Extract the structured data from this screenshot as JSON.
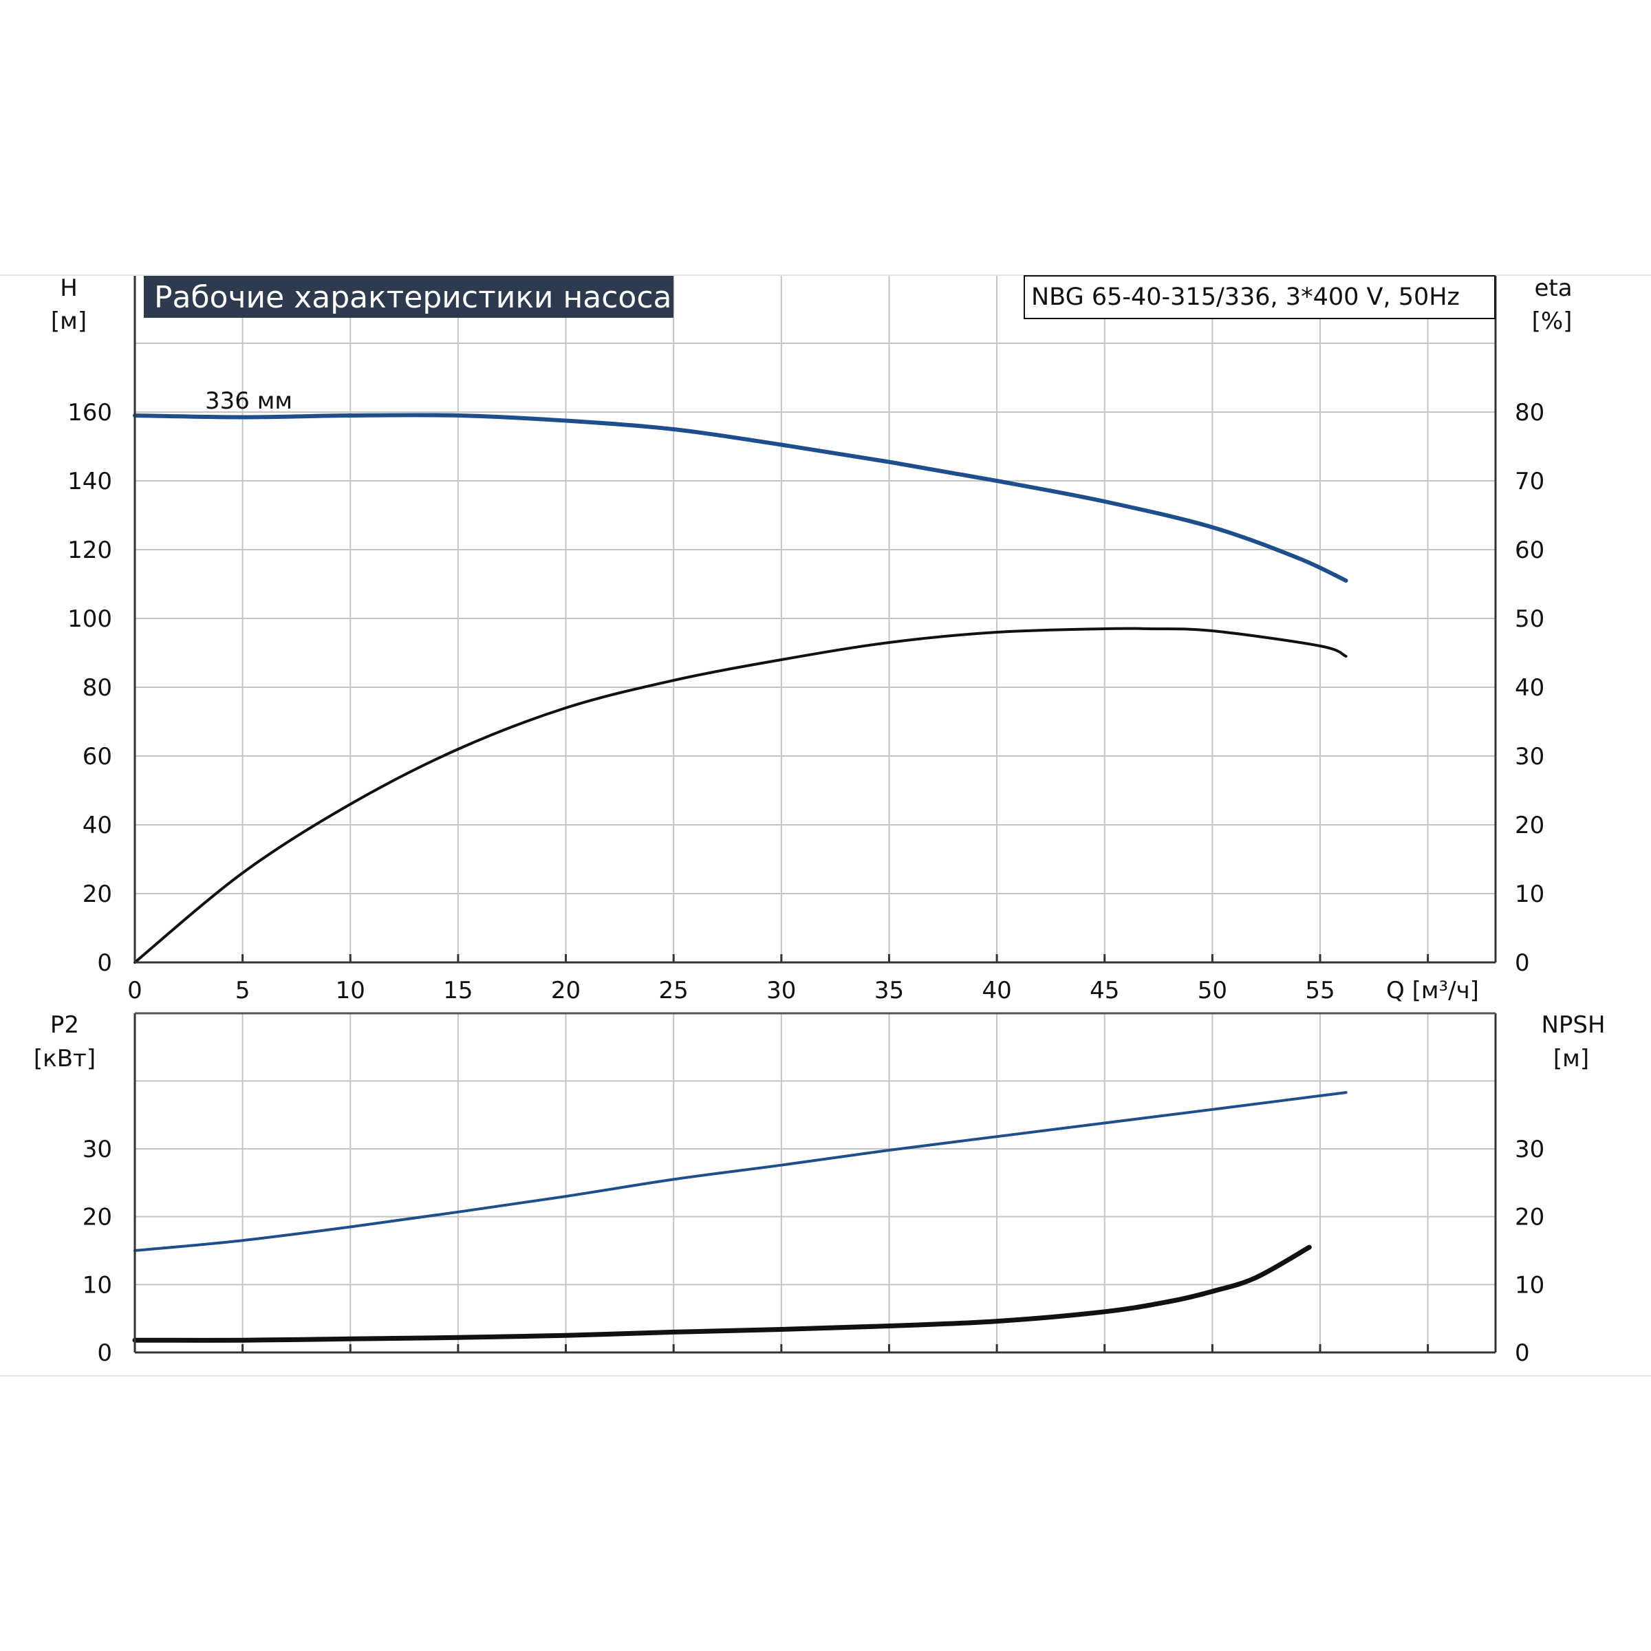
{
  "title": "Рабочие характеристики насоса",
  "model_label": "NBG 65-40-315/336, 3*400 V, 50Hz",
  "colors": {
    "blue": "#1f4e8c",
    "black": "#111111",
    "grid": "#c4c4c4",
    "title_bg": "#2e3b4e"
  },
  "chart_data": [
    {
      "type": "line",
      "panel": "top",
      "xlabel": "Q [м³/ч]",
      "ylabel_left": {
        "name": "H",
        "unit": "[м]"
      },
      "ylabel_right": {
        "name": "eta",
        "unit": "[%]"
      },
      "xlim": [
        0,
        60
      ],
      "ylim_left": [
        0,
        180
      ],
      "ylim_right": [
        0,
        90
      ],
      "x_ticks": [
        0,
        5,
        10,
        15,
        20,
        25,
        30,
        35,
        40,
        45,
        50,
        55
      ],
      "y_ticks_left": [
        0,
        20,
        40,
        60,
        80,
        100,
        120,
        140,
        160
      ],
      "y_ticks_right": [
        0,
        10,
        20,
        30,
        40,
        50,
        60,
        70,
        80
      ],
      "grid": true,
      "series": [
        {
          "name": "336 мм",
          "axis": "left",
          "color": "#1f4e8c",
          "x": [
            0,
            5,
            10,
            15,
            20,
            25,
            30,
            35,
            40,
            45,
            50,
            54,
            56.2
          ],
          "y": [
            159,
            158.5,
            159,
            159,
            157.5,
            155,
            150.5,
            145.5,
            140,
            134,
            126.5,
            117.5,
            111
          ]
        },
        {
          "axis": "right",
          "color": "#111111",
          "x": [
            0,
            5,
            10,
            15,
            20,
            25,
            30,
            35,
            40,
            45,
            47,
            50,
            55,
            56.2
          ],
          "y": [
            0,
            13,
            23,
            31,
            37,
            41,
            44,
            46.5,
            48,
            48.5,
            48.5,
            48.2,
            46,
            44.5
          ]
        }
      ]
    },
    {
      "type": "line",
      "panel": "bottom",
      "ylabel_left": {
        "name": "P2",
        "unit": "[кВт]"
      },
      "ylabel_right": {
        "name": "NPSH",
        "unit": "[м]"
      },
      "xlim": [
        0,
        60
      ],
      "ylim_left": [
        0,
        40
      ],
      "ylim_right": [
        0,
        40
      ],
      "y_ticks_left": [
        0,
        10,
        20,
        30
      ],
      "y_ticks_right": [
        0,
        10,
        20,
        30
      ],
      "grid": true,
      "series": [
        {
          "axis": "left",
          "color": "#1f4e8c",
          "x": [
            0,
            5,
            10,
            15,
            20,
            25,
            30,
            35,
            40,
            45,
            50,
            56.2
          ],
          "y": [
            15,
            16.5,
            18.5,
            20.7,
            23,
            25.5,
            27.6,
            29.8,
            31.8,
            33.8,
            35.8,
            38.3
          ]
        },
        {
          "axis": "right",
          "color": "#111111",
          "x": [
            0,
            5,
            10,
            15,
            20,
            25,
            30,
            35,
            40,
            45,
            48,
            50,
            52,
            54.5
          ],
          "y": [
            1.8,
            1.8,
            2,
            2.2,
            2.5,
            3,
            3.4,
            3.9,
            4.6,
            6,
            7.5,
            9,
            11,
            15.5
          ]
        }
      ]
    }
  ]
}
